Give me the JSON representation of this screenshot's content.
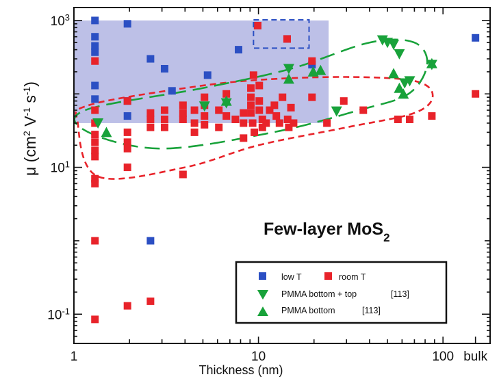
{
  "chart_data": {
    "type": "scatter",
    "title": "",
    "annotation": {
      "main": "Few-layer MoS",
      "subscript": "2"
    },
    "xlabel": "Thickness (nm)",
    "ylabel": {
      "prefix": "μ (cm",
      "sup1": "2",
      "mid1": " V",
      "sup2": "-1",
      "mid2": " s",
      "sup3": "-1",
      "suffix": ")"
    },
    "x_scale": "log",
    "y_scale": "log",
    "xlim": [
      1,
      180
    ],
    "ylim": [
      0.04,
      1500
    ],
    "x_ticks": [
      {
        "value": 1,
        "label": "1"
      },
      {
        "value": 10,
        "label": "10"
      },
      {
        "value": 100,
        "label": "100"
      },
      {
        "value": 150,
        "label": "bulk"
      }
    ],
    "y_ticks": [
      {
        "value": 0.1,
        "base": "10",
        "exp": "-1"
      },
      {
        "value": 10,
        "base": "10",
        "exp": "1"
      },
      {
        "value": 1000,
        "base": "10",
        "exp": "3"
      }
    ],
    "colors": {
      "blue": "#2b4fc3",
      "red": "#e8232a",
      "green": "#18a23a",
      "shade": "#b9bde6"
    },
    "shaded_region": {
      "x": [
        1,
        24
      ],
      "y": [
        40,
        1000
      ]
    },
    "highlight_box": {
      "x": [
        9.4,
        18.8
      ],
      "y": [
        420,
        1020
      ]
    },
    "legend": {
      "low_t": "low T",
      "room_t": "room T",
      "pmma_bt": "PMMA bottom + top",
      "pmma_bt_ref": "[113]",
      "pmma_b": "PMMA bottom",
      "pmma_b_ref": "[113]"
    },
    "series": [
      {
        "name": "low T",
        "marker": "square",
        "color": "#2b4fc3",
        "points": [
          [
            1.3,
            1000
          ],
          [
            1.3,
            600
          ],
          [
            1.3,
            450
          ],
          [
            1.3,
            370
          ],
          [
            1.3,
            130
          ],
          [
            1.3,
            85
          ],
          [
            1.95,
            900
          ],
          [
            1.95,
            80
          ],
          [
            1.95,
            50
          ],
          [
            2.6,
            300
          ],
          [
            2.6,
            1
          ],
          [
            3.1,
            220
          ],
          [
            3.4,
            110
          ],
          [
            5.3,
            180
          ],
          [
            7.8,
            400
          ],
          [
            9.9,
            850
          ],
          [
            14.3,
            560
          ],
          [
            19.5,
            250
          ],
          [
            150,
            580
          ]
        ]
      },
      {
        "name": "room T",
        "marker": "square",
        "color": "#e8232a",
        "points": [
          [
            1.3,
            280
          ],
          [
            1.3,
            60
          ],
          [
            1.3,
            40
          ],
          [
            1.3,
            28
          ],
          [
            1.3,
            22
          ],
          [
            1.3,
            17
          ],
          [
            1.3,
            14
          ],
          [
            1.3,
            7
          ],
          [
            1.3,
            6
          ],
          [
            1.3,
            1
          ],
          [
            1.3,
            0.085
          ],
          [
            1.95,
            80
          ],
          [
            1.95,
            30
          ],
          [
            1.95,
            22
          ],
          [
            1.95,
            18
          ],
          [
            1.95,
            10
          ],
          [
            1.95,
            0.13
          ],
          [
            2.6,
            55
          ],
          [
            2.6,
            45
          ],
          [
            2.6,
            35
          ],
          [
            2.6,
            0.15
          ],
          [
            3.1,
            60
          ],
          [
            3.1,
            45
          ],
          [
            3.1,
            35
          ],
          [
            3.9,
            70
          ],
          [
            3.9,
            55
          ],
          [
            3.9,
            45
          ],
          [
            3.9,
            8
          ],
          [
            4.5,
            60
          ],
          [
            4.5,
            40
          ],
          [
            4.5,
            30
          ],
          [
            5.1,
            90
          ],
          [
            5.1,
            70
          ],
          [
            5.1,
            50
          ],
          [
            5.1,
            38
          ],
          [
            6.1,
            60
          ],
          [
            6.1,
            35
          ],
          [
            6.7,
            100
          ],
          [
            6.7,
            50
          ],
          [
            7.5,
            45
          ],
          [
            8.3,
            55
          ],
          [
            8.3,
            40
          ],
          [
            8.3,
            25
          ],
          [
            9.1,
            120
          ],
          [
            9.1,
            90
          ],
          [
            9.1,
            70
          ],
          [
            9.1,
            55
          ],
          [
            9.3,
            40
          ],
          [
            9.4,
            180
          ],
          [
            9.5,
            30
          ],
          [
            9.9,
            850
          ],
          [
            10.1,
            130
          ],
          [
            10.1,
            80
          ],
          [
            10.1,
            60
          ],
          [
            10.5,
            45
          ],
          [
            10.5,
            35
          ],
          [
            11,
            40
          ],
          [
            11.5,
            60
          ],
          [
            12.2,
            70
          ],
          [
            12.5,
            50
          ],
          [
            13,
            40
          ],
          [
            13.5,
            90
          ],
          [
            14.3,
            560
          ],
          [
            14.4,
            45
          ],
          [
            14.6,
            35
          ],
          [
            15,
            65
          ],
          [
            15.5,
            40
          ],
          [
            19.5,
            90
          ],
          [
            19.5,
            280
          ],
          [
            23.5,
            40
          ],
          [
            29,
            80
          ],
          [
            37,
            60
          ],
          [
            57,
            45
          ],
          [
            66,
            45
          ],
          [
            87,
            50
          ],
          [
            150,
            100
          ]
        ]
      },
      {
        "name": "PMMA bottom + top",
        "marker": "triangle-down",
        "color": "#18a23a",
        "points": [
          [
            1.35,
            40
          ],
          [
            5.1,
            68
          ],
          [
            6.7,
            75
          ],
          [
            14.6,
            220
          ],
          [
            26.5,
            58
          ],
          [
            47,
            540
          ],
          [
            50,
            500
          ],
          [
            54,
            470
          ],
          [
            58,
            350
          ],
          [
            62,
            140
          ],
          [
            66,
            150
          ],
          [
            87,
            250
          ]
        ]
      },
      {
        "name": "PMMA bottom",
        "marker": "triangle-up",
        "color": "#18a23a",
        "points": [
          [
            1.5,
            30
          ],
          [
            6.7,
            80
          ],
          [
            14.6,
            160
          ],
          [
            19.8,
            200
          ],
          [
            21.7,
            210
          ],
          [
            54,
            190
          ],
          [
            58,
            120
          ],
          [
            61,
            100
          ],
          [
            87,
            260
          ]
        ]
      }
    ],
    "ellipses": [
      {
        "style": "red-dash",
        "color": "#e8232a",
        "dash": "9 6",
        "path": [
          [
            1.2,
            70
          ],
          [
            4,
            120
          ],
          [
            10,
            155
          ],
          [
            30,
            170
          ],
          [
            70,
            150
          ],
          [
            88,
            95
          ],
          [
            70,
            55
          ],
          [
            30,
            35
          ],
          [
            10,
            20
          ],
          [
            4,
            10
          ],
          [
            1.35,
            7.5
          ],
          [
            1.05,
            40
          ],
          [
            1.2,
            70
          ]
        ]
      },
      {
        "style": "green-longdash",
        "color": "#18a23a",
        "dash": "22 10",
        "path": [
          [
            1.15,
            60
          ],
          [
            5,
            120
          ],
          [
            15,
            220
          ],
          [
            40,
            500
          ],
          [
            70,
            500
          ],
          [
            82,
            250
          ],
          [
            65,
            100
          ],
          [
            35,
            60
          ],
          [
            12,
            30
          ],
          [
            3,
            18
          ],
          [
            1.2,
            30
          ],
          [
            1.15,
            60
          ]
        ]
      }
    ]
  }
}
